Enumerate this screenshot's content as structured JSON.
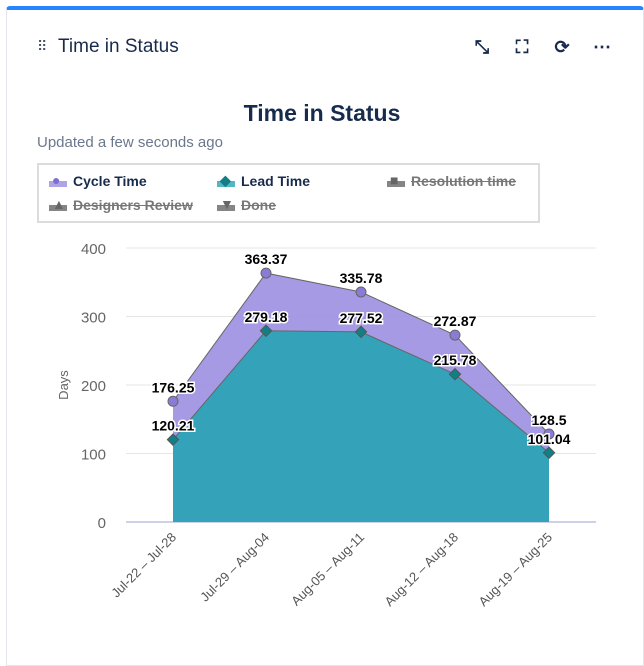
{
  "header": {
    "title": "Time in Status",
    "icons": [
      "drag-handle-icon",
      "collapse-icon",
      "fullscreen-icon",
      "refresh-icon",
      "more-icon"
    ]
  },
  "chart_title": "Time in Status",
  "updated": "Updated a few seconds ago",
  "legend": [
    {
      "label": "Cycle Time",
      "color": "#9b8fe0",
      "marker": "circle",
      "active": true
    },
    {
      "label": "Lead Time",
      "color": "#2aa3b5",
      "marker": "diamond",
      "active": true
    },
    {
      "label": "Resolution time",
      "color": "#666666",
      "marker": "square",
      "active": false
    },
    {
      "label": "Designers Review",
      "color": "#666666",
      "marker": "triangle",
      "active": false
    },
    {
      "label": "Done",
      "color": "#666666",
      "marker": "triangle-down",
      "active": false
    }
  ],
  "chart_data": {
    "type": "area",
    "ylabel": "Days",
    "ylim": [
      0,
      400
    ],
    "yticks": [
      0,
      100,
      200,
      300,
      400
    ],
    "grid": true,
    "categories": [
      "Jul-22 – Jul-28",
      "Jul-29 – Aug-04",
      "Aug-05 – Aug-11",
      "Aug-12 – Aug-18",
      "Aug-19 – Aug-25"
    ],
    "series": [
      {
        "name": "Cycle Time",
        "color": "#9b8fe0",
        "values": [
          176.25,
          363.37,
          335.78,
          272.87,
          128.5
        ]
      },
      {
        "name": "Lead Time",
        "color": "#2aa3b5",
        "values": [
          120.21,
          279.18,
          277.52,
          215.78,
          101.04
        ]
      }
    ]
  }
}
